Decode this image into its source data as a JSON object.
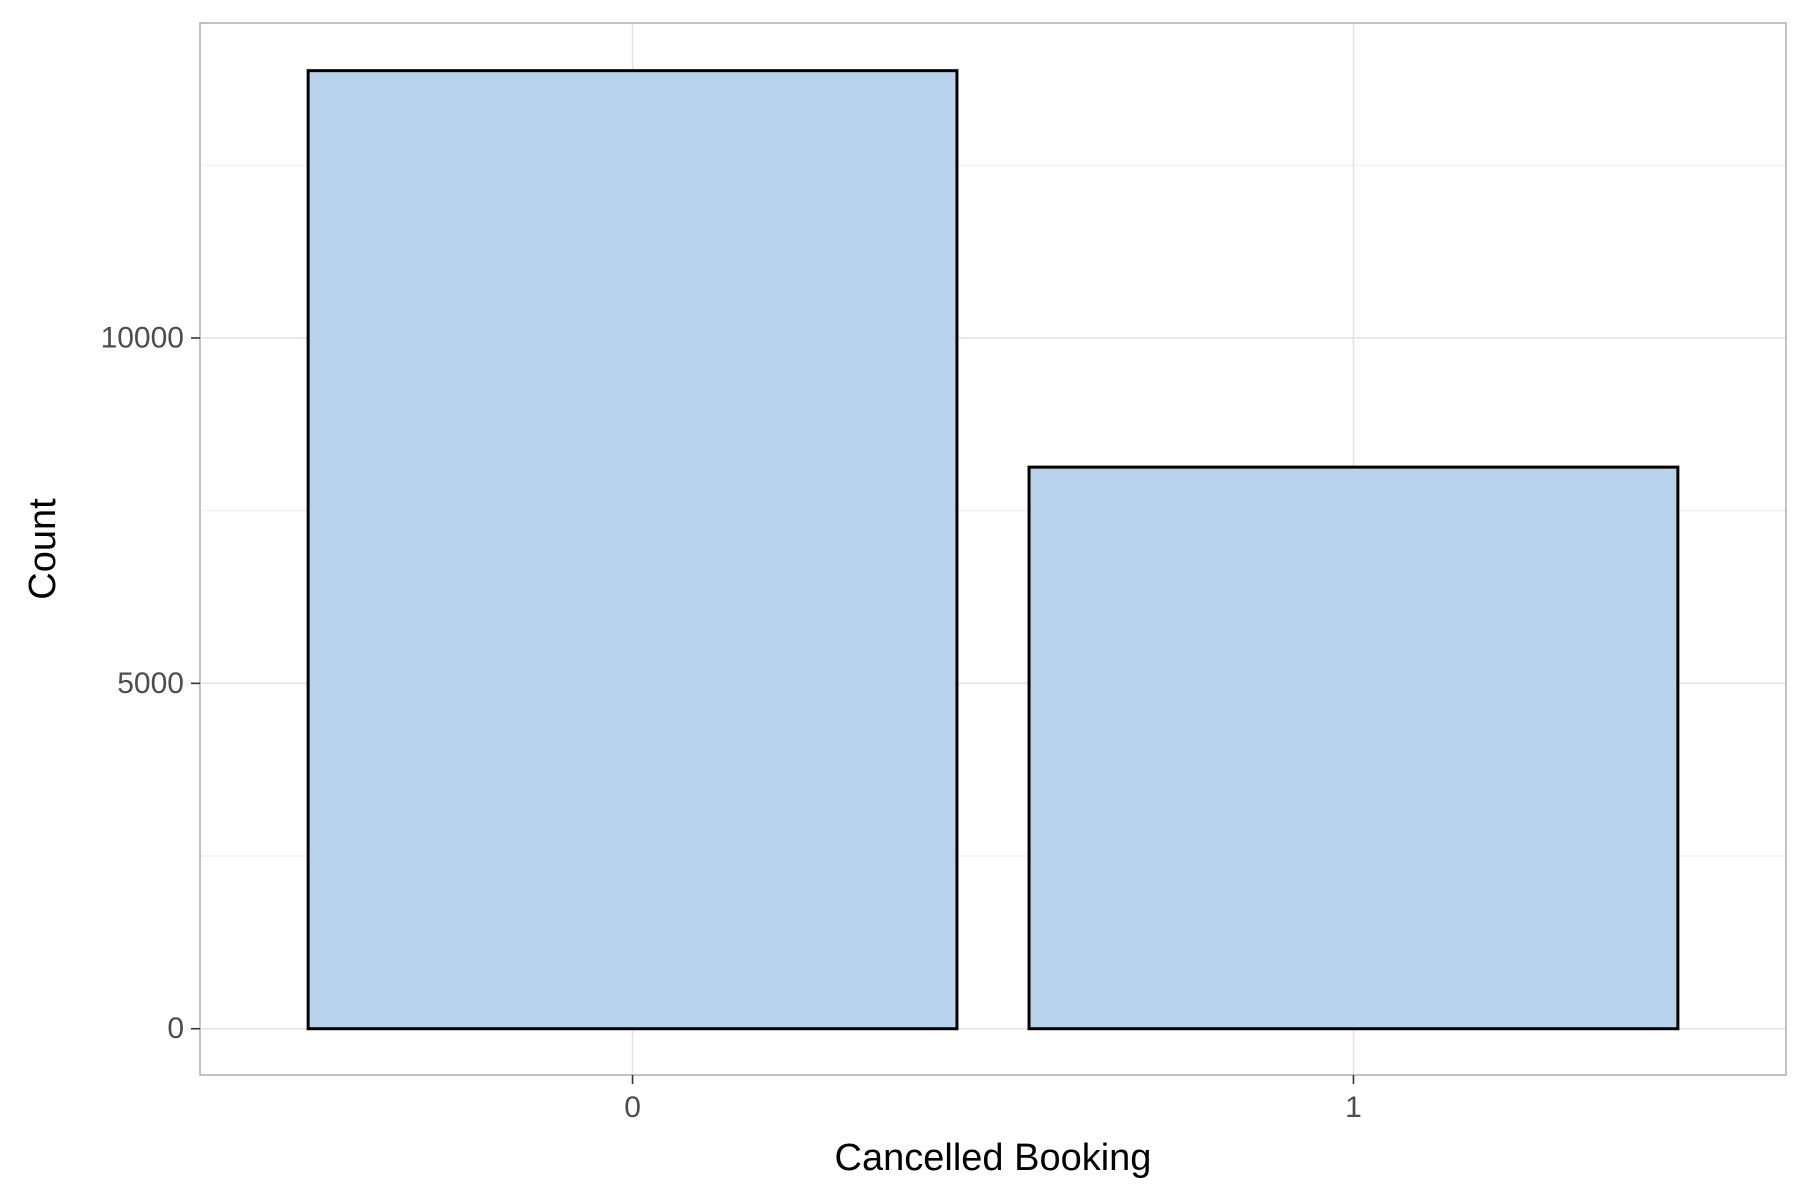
{
  "chart_data": {
    "type": "bar",
    "categories": [
      "0",
      "1"
    ],
    "values": [
      13870,
      8130
    ],
    "xlabel": "Cancelled Booking",
    "ylabel": "Count",
    "ylim": [
      -670,
      14560
    ],
    "y_ticks": [
      0,
      5000,
      10000
    ],
    "y_minor_ticks": [
      2500,
      7500,
      12500
    ],
    "grid": true,
    "legend": "none",
    "colors": {
      "bar_fill": "#BAD3ED",
      "bar_stroke": "#000000",
      "panel_border": "#b3b3b3",
      "grid_major": "#e3e3e3",
      "grid_minor": "#efefef",
      "tick_text": "#4d4d4d",
      "title_text": "#000000"
    }
  }
}
